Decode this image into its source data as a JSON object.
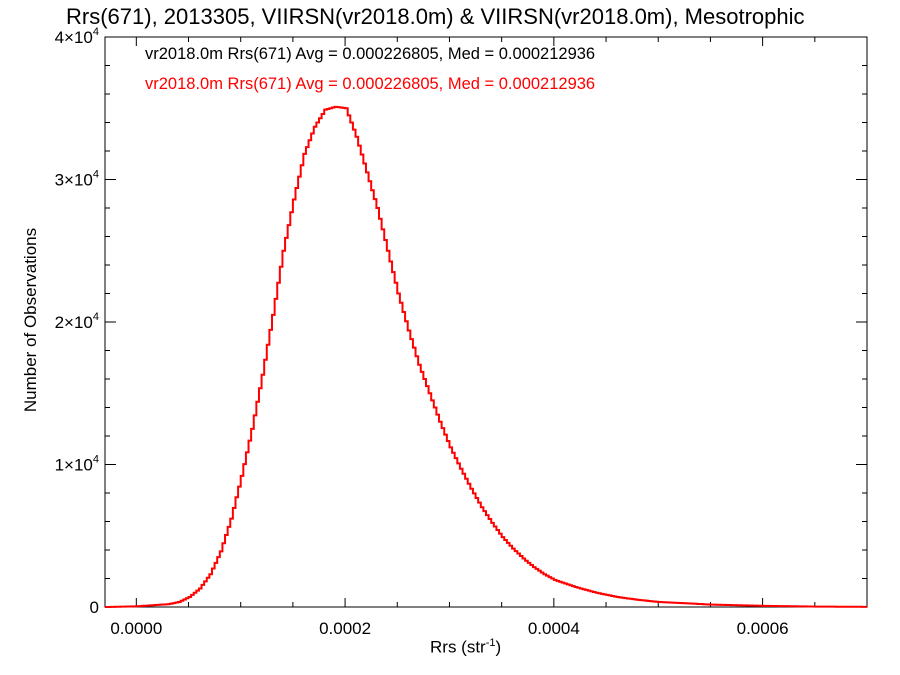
{
  "chart_data": {
    "type": "line",
    "title": "Rrs(671), 2013305, VIIRSN(vr2018.0m) & VIIRSN(vr2018.0m), Mesotrophic",
    "xlabel": "Rrs (str",
    "xlabel_sup": "-1",
    "xlabel_suffix": ")",
    "ylabel": "Number of Observations",
    "xlim": [
      -3e-05,
      0.0007
    ],
    "ylim": [
      0,
      40000
    ],
    "x_ticks": [
      "0.0000",
      "0.0002",
      "0.0004",
      "0.0006"
    ],
    "x_tick_values": [
      0,
      0.0002,
      0.0004,
      0.0006
    ],
    "y_ticks": [
      {
        "value": 0,
        "base": "0",
        "exp": ""
      },
      {
        "value": 10000,
        "base": "1×10",
        "exp": "4"
      },
      {
        "value": 20000,
        "base": "2×10",
        "exp": "4"
      },
      {
        "value": 30000,
        "base": "3×10",
        "exp": "4"
      },
      {
        "value": 40000,
        "base": "4×10",
        "exp": "4"
      }
    ],
    "legend": [
      {
        "text": "vr2018.0m Rrs(671) Avg = 0.000226805, Med = 0.000212936",
        "color": "#000000"
      },
      {
        "text": "vr2018.0m Rrs(671) Avg = 0.000226805, Med = 0.000212936",
        "color": "#ff0000"
      }
    ],
    "series": [
      {
        "color": "#ff0000",
        "x": [
          -3e-05,
          0.0,
          3e-05,
          4e-05,
          5e-05,
          6e-05,
          7e-05,
          8e-05,
          9e-05,
          0.0001,
          0.00011,
          0.00012,
          0.00013,
          0.00014,
          0.00015,
          0.00016,
          0.00017,
          0.00018,
          0.00019,
          0.0002,
          0.00021,
          0.00022,
          0.00023,
          0.00024,
          0.00025,
          0.00026,
          0.00027,
          0.00028,
          0.00029,
          0.0003,
          0.00031,
          0.00032,
          0.00033,
          0.00034,
          0.00035,
          0.00036,
          0.00037,
          0.00038,
          0.00039,
          0.0004,
          0.00042,
          0.00044,
          0.00046,
          0.00048,
          0.0005,
          0.00055,
          0.0006,
          0.00065,
          0.0007
        ],
        "y": [
          0,
          50,
          200,
          350,
          700,
          1300,
          2300,
          3900,
          6200,
          9200,
          12500,
          16300,
          20500,
          25000,
          28600,
          31800,
          33700,
          34900,
          35100,
          35000,
          33000,
          30500,
          28000,
          25000,
          22000,
          19400,
          17000,
          15000,
          13000,
          11200,
          9700,
          8300,
          7000,
          5900,
          4900,
          4100,
          3400,
          2800,
          2300,
          1900,
          1400,
          1000,
          700,
          500,
          350,
          170,
          80,
          30,
          10
        ]
      }
    ]
  }
}
